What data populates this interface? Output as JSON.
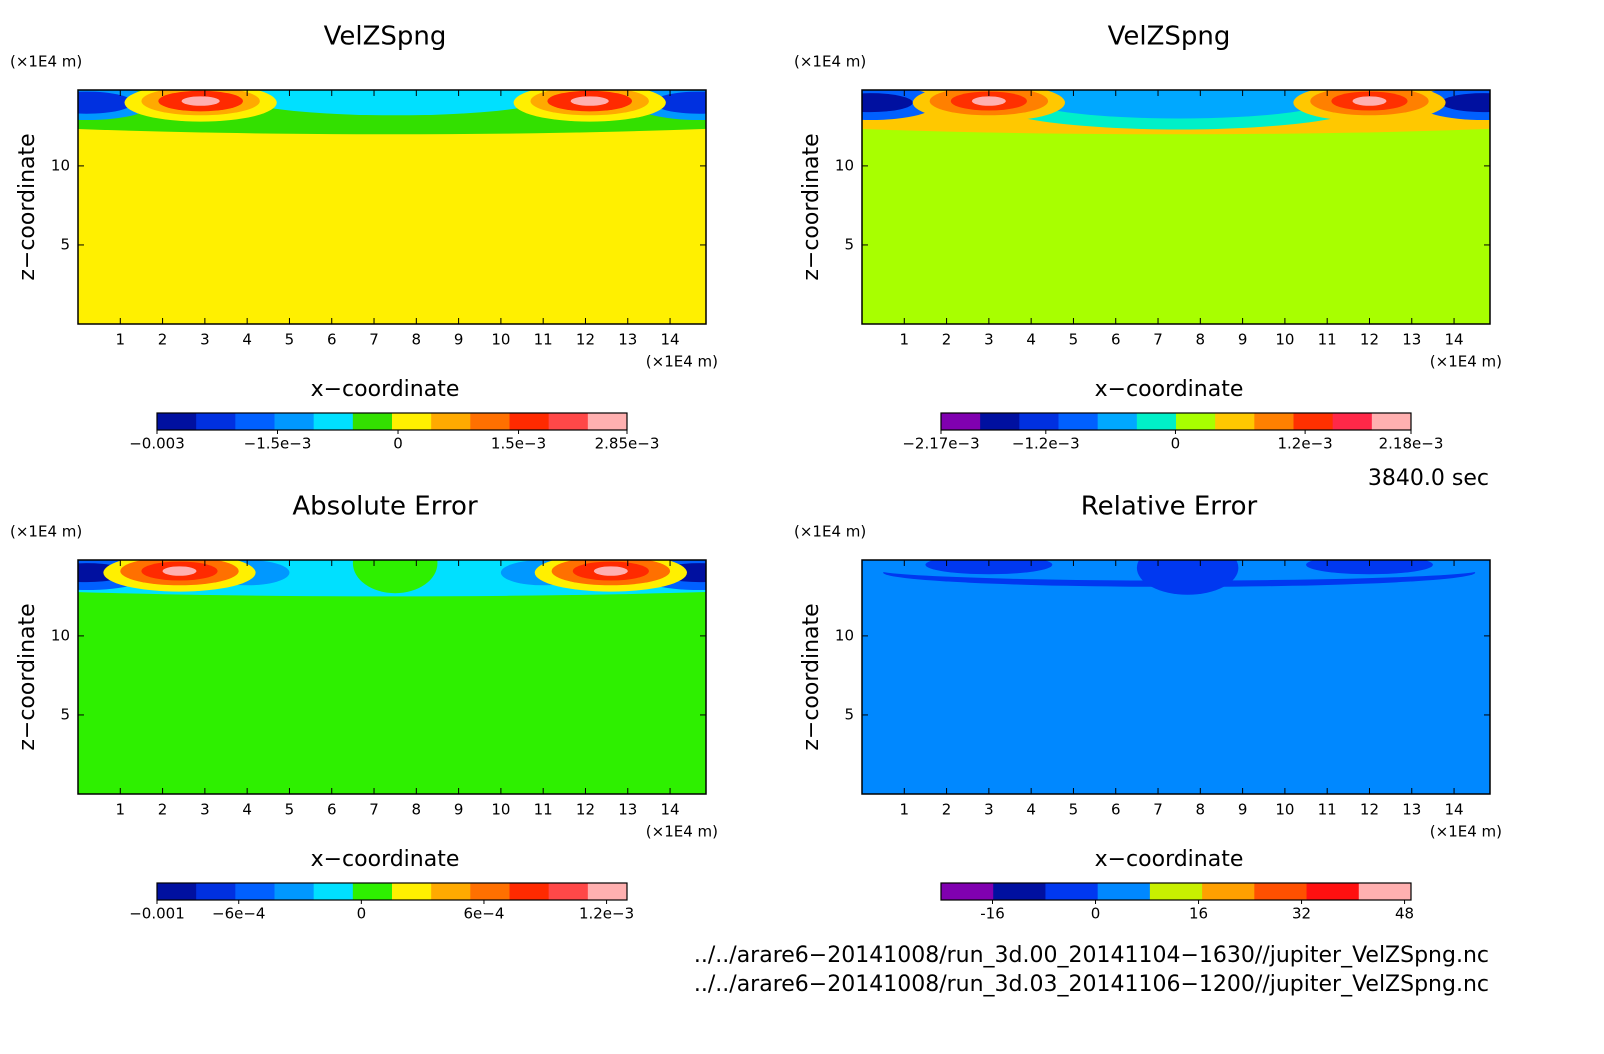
{
  "chart_data": [
    {
      "type": "contour",
      "title": "VelZSpng",
      "xlabel": "x−coordinate",
      "ylabel": "z−coordinate",
      "x_unit": "(×1E4 m)",
      "y_unit": "(×1E4 m)",
      "xlim": [
        0,
        14.85
      ],
      "xticks": [
        1,
        2,
        3,
        4,
        5,
        6,
        7,
        8,
        9,
        10,
        11,
        12,
        13,
        14
      ],
      "ylim": [
        0,
        14.8
      ],
      "yticks": [
        5,
        10
      ],
      "field_color": "#fff000",
      "colorbar": {
        "clim": [
          -0.003,
          0.00285
        ],
        "colors": [
          "#0010a0",
          "#0030e0",
          "#0060ff",
          "#0098ff",
          "#00e0ff",
          "#33e000",
          "#fff000",
          "#ffaa00",
          "#ff7000",
          "#ff2a00",
          "#ff4848",
          "#ffb0b0"
        ],
        "ticks": [
          {
            "value": -0.003,
            "label": "−0.003"
          },
          {
            "value": -0.0015,
            "label": "−1.5e−3"
          },
          0,
          {
            "value": 0.0015,
            "label": "1.5e−3"
          },
          {
            "value": 0.00285,
            "label": "2.85e−3"
          }
        ]
      }
    },
    {
      "type": "contour",
      "title": "VelZSpng",
      "xlabel": "x−coordinate",
      "ylabel": "z−coordinate",
      "x_unit": "(×1E4 m)",
      "y_unit": "(×1E4 m)",
      "xlim": [
        0,
        14.85
      ],
      "xticks": [
        1,
        2,
        3,
        4,
        5,
        6,
        7,
        8,
        9,
        10,
        11,
        12,
        13,
        14
      ],
      "ylim": [
        0,
        14.8
      ],
      "yticks": [
        5,
        10
      ],
      "field_color": "#a8ff00",
      "colorbar": {
        "clim": [
          -0.00217,
          0.00218
        ],
        "colors": [
          "#8000b0",
          "#0010a0",
          "#0030e0",
          "#0060ff",
          "#00a8ff",
          "#00f0c8",
          "#a8ff00",
          "#ffc800",
          "#ff8000",
          "#ff3000",
          "#ff2848",
          "#ffb0b0"
        ],
        "ticks": [
          {
            "value": -0.00217,
            "label": "−2.17e−3"
          },
          {
            "value": -0.0012,
            "label": "−1.2e−3"
          },
          0,
          {
            "value": 0.0012,
            "label": "1.2e−3"
          },
          {
            "value": 0.00218,
            "label": "2.18e−3"
          }
        ]
      }
    },
    {
      "type": "contour",
      "title": "Absolute Error",
      "xlabel": "x−coordinate",
      "ylabel": "z−coordinate",
      "x_unit": "(×1E4 m)",
      "y_unit": "(×1E4 m)",
      "xlim": [
        0,
        14.85
      ],
      "xticks": [
        1,
        2,
        3,
        4,
        5,
        6,
        7,
        8,
        9,
        10,
        11,
        12,
        13,
        14
      ],
      "ylim": [
        0,
        14.8
      ],
      "yticks": [
        5,
        10
      ],
      "field_color": "#2ef000",
      "colorbar": {
        "clim": [
          -0.001,
          0.0013
        ],
        "colors": [
          "#0010a0",
          "#0030e0",
          "#0060ff",
          "#0098ff",
          "#00e0ff",
          "#2ef000",
          "#fff000",
          "#ffaa00",
          "#ff7000",
          "#ff2a00",
          "#ff4848",
          "#ffb0b0"
        ],
        "ticks": [
          {
            "value": -0.001,
            "label": "−0.001"
          },
          {
            "value": -0.0006,
            "label": "−6e−4"
          },
          0,
          {
            "value": 0.0006,
            "label": "6e−4"
          },
          {
            "value": 0.0012,
            "label": "1.2e−3"
          }
        ]
      }
    },
    {
      "type": "contour",
      "title": "Relative Error",
      "xlabel": "x−coordinate",
      "ylabel": "z−coordinate",
      "x_unit": "(×1E4 m)",
      "y_unit": "(×1E4 m)",
      "xlim": [
        0,
        14.85
      ],
      "xticks": [
        1,
        2,
        3,
        4,
        5,
        6,
        7,
        8,
        9,
        10,
        11,
        12,
        13,
        14
      ],
      "ylim": [
        0,
        14.8
      ],
      "yticks": [
        5,
        10
      ],
      "field_color": "#0088ff",
      "colorbar": {
        "clim": [
          -24,
          49
        ],
        "colors": [
          "#8000b0",
          "#0010a0",
          "#0038f0",
          "#0088ff",
          "#c8f000",
          "#ffa000",
          "#ff5000",
          "#ff1010",
          "#ffb0b0"
        ],
        "ticks": [
          -16,
          0,
          16,
          32,
          48
        ]
      }
    }
  ],
  "time_label": "3840.0 sec",
  "files": [
    "../../arare6−20141008/run_3d.00_20141104−1630//jupiter_VelZSpng.nc",
    "../../arare6−20141008/run_3d.03_20141106−1200//jupiter_VelZSpng.nc"
  ]
}
